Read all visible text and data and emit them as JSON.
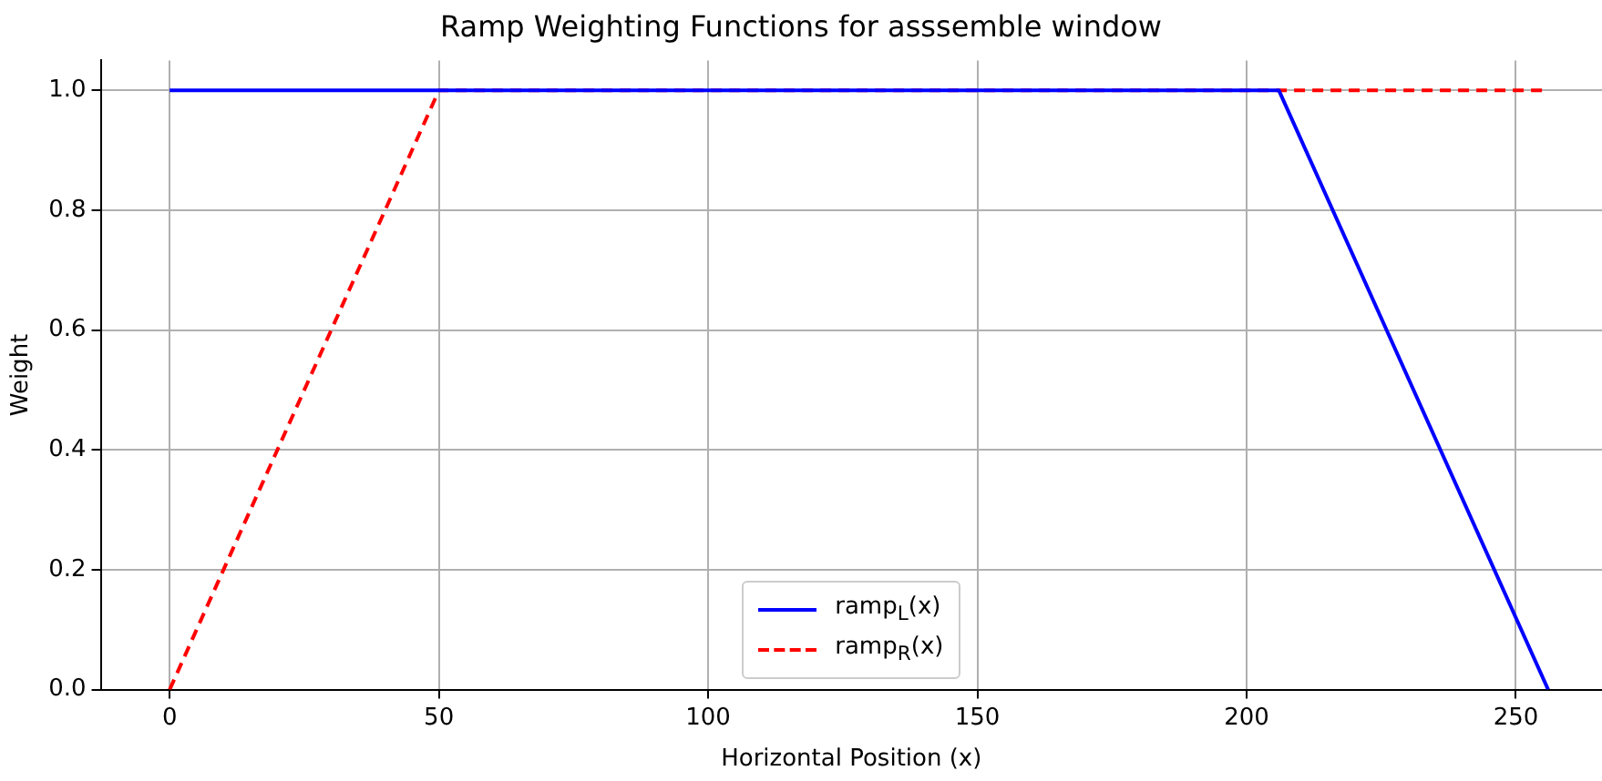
{
  "chart_data": {
    "type": "line",
    "title": "Ramp Weighting Functions for asssemble window",
    "xlabel": "Horizontal Position (x)",
    "ylabel": "Weight",
    "series": [
      {
        "name": "ramp$_{L}$(x)",
        "color": "#0000ff",
        "x": [
          0,
          206,
          256
        ],
        "values": [
          1,
          1,
          0
        ],
        "line_style": "solid"
      },
      {
        "name": "ramp$_{R}$(x)",
        "color": "#ff0000",
        "x": [
          0,
          50,
          256
        ],
        "values": [
          0,
          1,
          1
        ],
        "line_style": "dashed"
      }
    ],
    "xlim": [
      -12.8,
      266
    ],
    "xticks": [
      0,
      50,
      100,
      150,
      200,
      250
    ],
    "ylim": [
      0,
      1.05
    ],
    "yticks": [
      {
        "value": 0,
        "label": "0.0"
      },
      {
        "value": 0.2,
        "label": "0.2"
      },
      {
        "value": 0.4,
        "label": "0.4"
      },
      {
        "value": 0.6,
        "label": "0.6"
      },
      {
        "value": 0.8,
        "label": "0.8"
      },
      {
        "value": 1,
        "label": "1.0"
      }
    ],
    "grid": true,
    "legend": "bottom",
    "marker": "none"
  }
}
